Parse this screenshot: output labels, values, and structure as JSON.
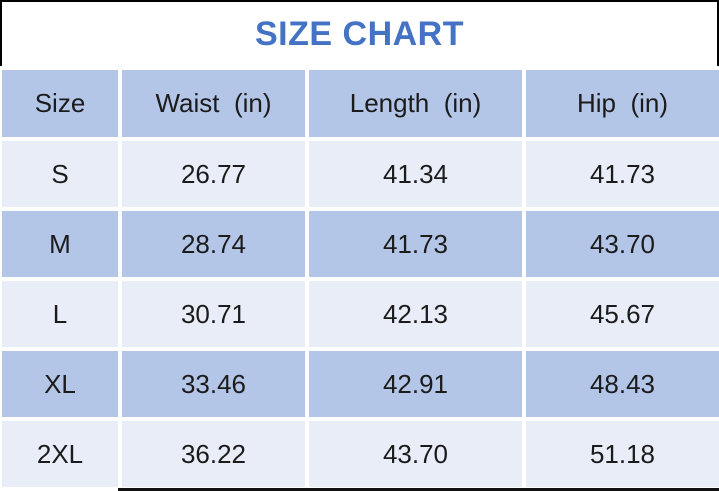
{
  "title": "SIZE CHART",
  "colors": {
    "title_text": "#4472c4",
    "header_bg": "#b4c6e7",
    "band_light_bg": "#e9edf8",
    "band_blue_bg": "#b4c6e7",
    "cell_text": "#1b1b1b",
    "border": "#000000"
  },
  "table": {
    "headers": [
      "Size",
      "Waist  (in)",
      "Length  (in)",
      "Hip  (in)"
    ],
    "rows": [
      {
        "size": "S",
        "waist": "26.77",
        "length": "41.34",
        "hip": "41.73"
      },
      {
        "size": "M",
        "waist": "28.74",
        "length": "41.73",
        "hip": "43.70"
      },
      {
        "size": "L",
        "waist": "30.71",
        "length": "42.13",
        "hip": "45.67"
      },
      {
        "size": "XL",
        "waist": "33.46",
        "length": "42.91",
        "hip": "48.43"
      },
      {
        "size": "2XL",
        "waist": "36.22",
        "length": "43.70",
        "hip": "51.18"
      }
    ]
  },
  "chart_data": {
    "type": "table",
    "title": "SIZE CHART",
    "columns": [
      "Size",
      "Waist (in)",
      "Length (in)",
      "Hip (in)"
    ],
    "rows": [
      [
        "S",
        26.77,
        41.34,
        41.73
      ],
      [
        "M",
        28.74,
        41.73,
        43.7
      ],
      [
        "L",
        30.71,
        42.13,
        45.67
      ],
      [
        "XL",
        33.46,
        42.91,
        48.43
      ],
      [
        "2XL",
        36.22,
        43.7,
        51.18
      ]
    ]
  }
}
